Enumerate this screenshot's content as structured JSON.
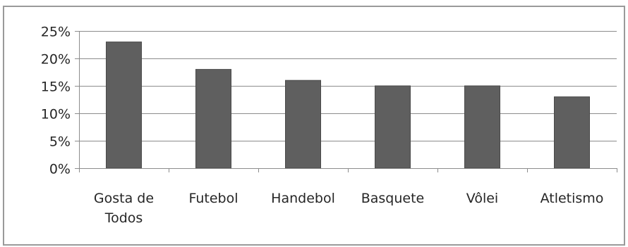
{
  "chart_data": {
    "type": "bar",
    "title": "",
    "xlabel": "",
    "ylabel": "",
    "categories": [
      "Gosta de Todos",
      "Futebol",
      "Handebol",
      "Basquete",
      "Vôlei",
      "Atletismo"
    ],
    "category_lines": [
      [
        "Gosta de",
        "Todos"
      ],
      [
        "Futebol"
      ],
      [
        "Handebol"
      ],
      [
        "Basquete"
      ],
      [
        "Vôlei"
      ],
      [
        "Atletismo"
      ]
    ],
    "values": [
      0.23,
      0.18,
      0.16,
      0.15,
      0.15,
      0.13
    ],
    "ylim": [
      0,
      0.25
    ],
    "yticks": [
      0,
      0.05,
      0.1,
      0.15,
      0.2,
      0.25
    ],
    "ytick_labels": [
      "0%",
      "5%",
      "10%",
      "15%",
      "20%",
      "25%"
    ],
    "grid": true,
    "legend": "none",
    "bar_color": "#5f5f5f"
  }
}
